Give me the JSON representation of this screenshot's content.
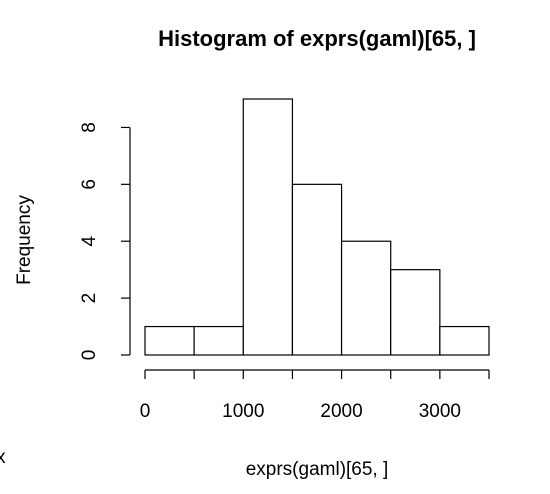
{
  "chart_data": {
    "type": "histogram",
    "title": "Histogram of exprs(gaml)[65, ]",
    "x_label": "exprs(gaml)[65, ]",
    "y_label": "Frequency",
    "annotation": "x",
    "bins": [
      0,
      500,
      1000,
      1500,
      2000,
      2500,
      3000,
      3500
    ],
    "values": [
      1,
      1,
      9,
      6,
      4,
      3,
      1
    ],
    "color": "#ffffff",
    "edge_color": "#000000",
    "xlim": [
      0,
      3500
    ],
    "xticks": [
      0,
      1000,
      2000,
      3000
    ],
    "ylim": [
      0,
      9
    ],
    "yticks": [
      0,
      2,
      4,
      6,
      8
    ]
  }
}
